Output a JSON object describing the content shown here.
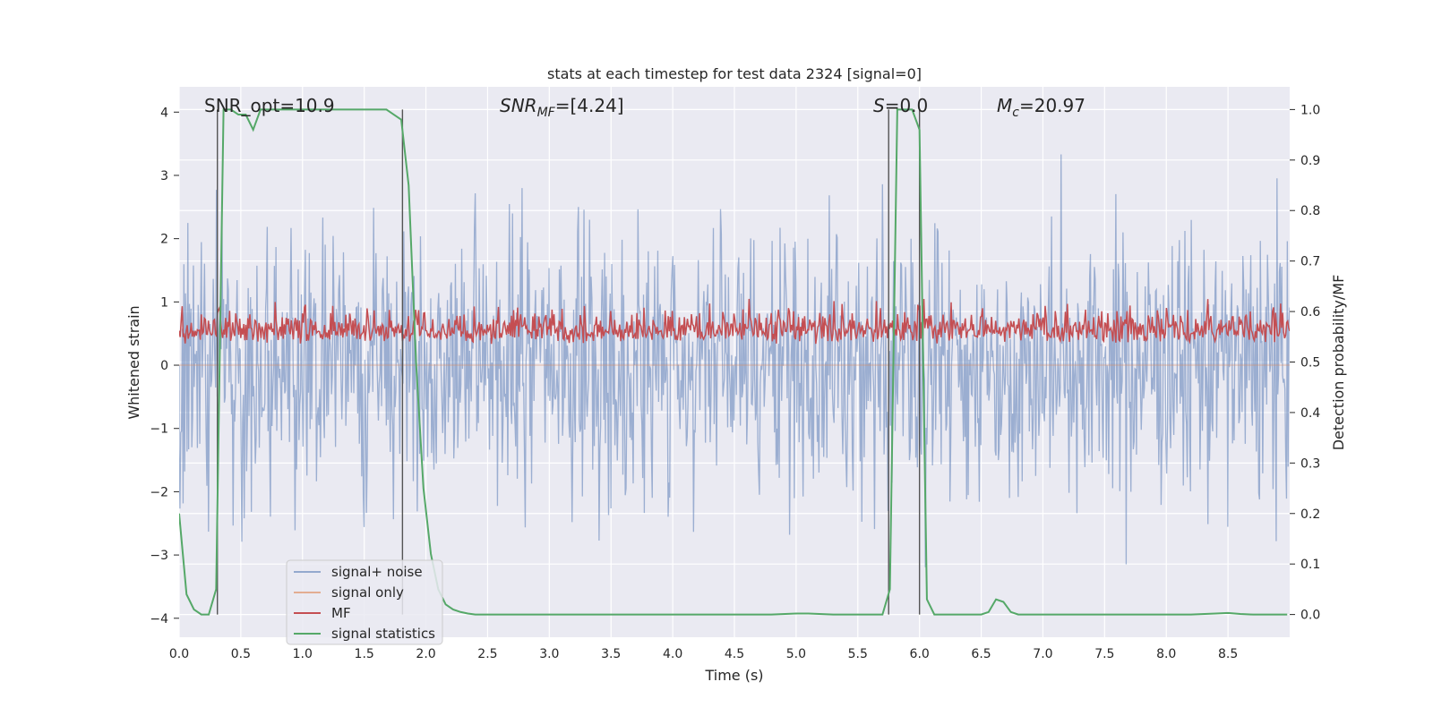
{
  "chart_data": {
    "type": "line",
    "title": "stats at each timestep for test data 2324 [signal=0]",
    "xlabel": "Time (s)",
    "ylabel": "Whitened strain",
    "y2label": "Detection probability/MF",
    "xlim": [
      0.0,
      9.0
    ],
    "ylim": [
      -4.3,
      4.4
    ],
    "y2lim": [
      -0.045,
      1.045
    ],
    "xticks": [
      "0.0",
      "0.5",
      "1.0",
      "1.5",
      "2.0",
      "2.5",
      "3.0",
      "3.5",
      "4.0",
      "4.5",
      "5.0",
      "5.5",
      "6.0",
      "6.5",
      "7.0",
      "7.5",
      "8.0",
      "8.5"
    ],
    "xtick_values": [
      0,
      0.5,
      1,
      1.5,
      2,
      2.5,
      3,
      3.5,
      4,
      4.5,
      5,
      5.5,
      6,
      6.5,
      7,
      7.5,
      8,
      8.5
    ],
    "yticks": [
      "4",
      "3",
      "2",
      "1",
      "0",
      "−1",
      "−2",
      "−3",
      "−4"
    ],
    "ytick_values": [
      4,
      3,
      2,
      1,
      0,
      -1,
      -2,
      -3,
      -4
    ],
    "y2ticks": [
      "1.0",
      "0.9",
      "0.8",
      "0.7",
      "0.6",
      "0.5",
      "0.4",
      "0.3",
      "0.2",
      "0.1",
      "0.0"
    ],
    "y2tick_values": [
      1.0,
      0.9,
      0.8,
      0.7,
      0.6,
      0.5,
      0.4,
      0.3,
      0.2,
      0.1,
      0.0
    ],
    "annotations": {
      "snr_opt": "SNR_opt=10.9",
      "snr_mf": "SNR",
      "snr_mf_sub": "MF",
      "snr_mf_val": "=[4.24]",
      "s_label": "S",
      "s_val": "=0.0",
      "mc_label": "M",
      "mc_sub": "c",
      "mc_val": "=20.97"
    },
    "vlines": [
      0.31,
      1.81,
      5.75,
      6.0
    ],
    "legend": {
      "placement": "lower-left",
      "entries": [
        "signal+ noise",
        "signal only",
        "MF",
        "signal statistics"
      ]
    },
    "series": [
      {
        "name": "signal statistics",
        "color": "#55a868",
        "axis": "right",
        "x": [
          0.0,
          0.06,
          0.12,
          0.18,
          0.24,
          0.3,
          0.36,
          0.42,
          0.48,
          0.54,
          0.6,
          0.66,
          0.72,
          0.78,
          0.84,
          0.9,
          0.96,
          1.02,
          1.08,
          1.14,
          1.2,
          1.26,
          1.32,
          1.38,
          1.44,
          1.5,
          1.56,
          1.62,
          1.68,
          1.74,
          1.8,
          1.86,
          1.92,
          1.98,
          2.04,
          2.1,
          2.16,
          2.22,
          2.28,
          2.34,
          2.4,
          3.0,
          4.0,
          4.8,
          5.0,
          5.1,
          5.3,
          5.5,
          5.7,
          5.76,
          5.82,
          5.88,
          5.94,
          6.0,
          6.06,
          6.12,
          6.18,
          6.3,
          6.4,
          6.5,
          6.56,
          6.62,
          6.68,
          6.74,
          6.8,
          6.9,
          7.5,
          8.0,
          8.2,
          8.4,
          8.5,
          8.6,
          8.7,
          8.98
        ],
        "values": [
          0.2,
          0.04,
          0.01,
          0.0,
          0.0,
          0.05,
          1.0,
          1.0,
          0.99,
          0.99,
          0.96,
          1.0,
          1.0,
          1.0,
          1.0,
          1.0,
          1.0,
          1.0,
          1.0,
          1.0,
          1.0,
          1.0,
          1.0,
          1.0,
          1.0,
          1.0,
          1.0,
          1.0,
          1.0,
          0.99,
          0.98,
          0.85,
          0.5,
          0.25,
          0.12,
          0.05,
          0.02,
          0.01,
          0.005,
          0.002,
          0.0,
          0.0,
          0.0,
          0.0,
          0.002,
          0.002,
          0.0,
          0.0,
          0.0,
          0.05,
          1.0,
          1.0,
          1.0,
          0.96,
          0.03,
          0.0,
          0.0,
          0.0,
          0.0,
          0.0,
          0.005,
          0.03,
          0.025,
          0.005,
          0.0,
          0.0,
          0.0,
          0.0,
          0.0,
          0.002,
          0.003,
          0.001,
          0.0,
          0.0
        ]
      },
      {
        "name": "signal+ noise",
        "color": "#4c72b0",
        "axis": "left",
        "summary": "whitened noise, roughly Gaussian, peaks between -3.8 and 3.7 over 0-9 s"
      },
      {
        "name": "signal only",
        "color": "#dd8452",
        "axis": "left",
        "summary": "zero (no injected signal)"
      },
      {
        "name": "MF",
        "color": "#c44e52",
        "axis": "right",
        "summary": "matched-filter output fluctuating between about 0.5 and 0.62 on the right axis"
      }
    ]
  }
}
